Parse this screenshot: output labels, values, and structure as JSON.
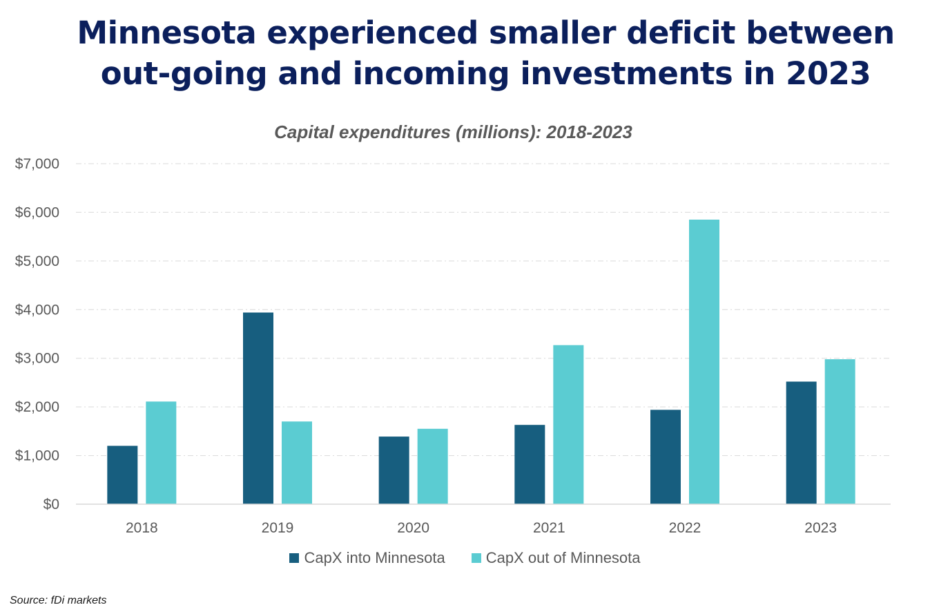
{
  "header": {
    "title_line1": "Minnesota experienced smaller deficit between",
    "title_line2": "out-going and incoming investments in 2023"
  },
  "footer": {
    "source": "Source: fDi markets"
  },
  "chart_data": {
    "type": "bar",
    "title": "Minnesota experienced smaller deficit between out-going and incoming investments in 2023",
    "subtitle": "Capital expenditures (millions): 2018-2023",
    "xlabel": "",
    "ylabel": "",
    "categories": [
      "2018",
      "2019",
      "2020",
      "2021",
      "2022",
      "2023"
    ],
    "series": [
      {
        "name": "CapX into Minnesota",
        "color": "#175e7f",
        "values": [
          1200,
          3940,
          1390,
          1630,
          1940,
          2520
        ]
      },
      {
        "name": "CapX out of Minnesota",
        "color": "#5bccd2",
        "values": [
          2110,
          1700,
          1550,
          3270,
          5850,
          2980
        ]
      }
    ],
    "ylim": [
      0,
      7000
    ],
    "yticks": [
      0,
      1000,
      2000,
      3000,
      4000,
      5000,
      6000,
      7000
    ],
    "ytick_labels": [
      "$0",
      "$1,000",
      "$2,000",
      "$3,000",
      "$4,000",
      "$5,000",
      "$6,000",
      "$7,000"
    ],
    "grid": true,
    "legend_position": "bottom",
    "source": "Source: fDi markets"
  }
}
